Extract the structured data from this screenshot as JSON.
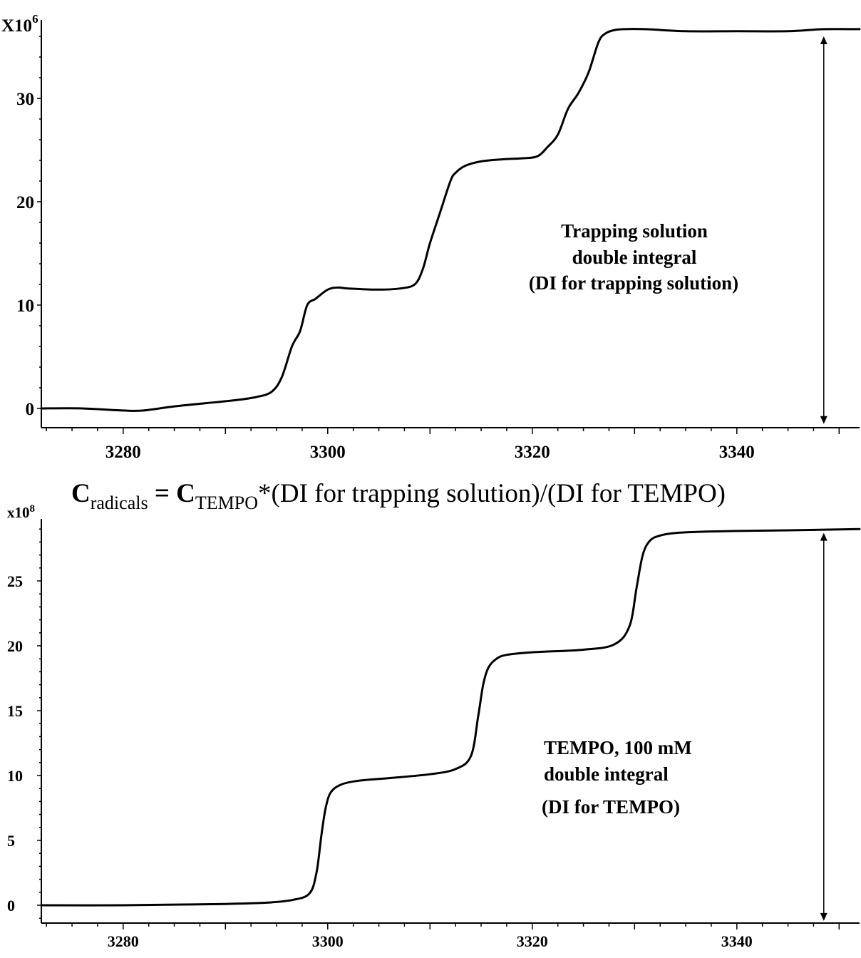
{
  "formula": {
    "c1": "C",
    "sub1": "radicals",
    "eq": " = ",
    "c2": "C",
    "sub2": "TEMPO",
    "rest": "*(DI for trapping solution)/(DI for TEMPO)"
  },
  "chart_data": [
    {
      "type": "line",
      "title": "",
      "xlabel": "",
      "ylabel": "",
      "y_multiplier_label": "X10",
      "y_multiplier_exponent": "6",
      "xlim": [
        3272,
        3352
      ],
      "ylim": [
        -1.8,
        36
      ],
      "x_ticks": [
        3280,
        3300,
        3320,
        3340
      ],
      "x_tick_labels": [
        "3280",
        "3300",
        "3320",
        "3340"
      ],
      "y_ticks": [
        0,
        10,
        20,
        30
      ],
      "y_tick_labels": [
        "0",
        "10",
        "20",
        "30"
      ],
      "annotation": [
        "Trapping solution",
        "double integral",
        "(DI for trapping solution)"
      ],
      "arrow_x": 3348.5,
      "arrow_y": [
        -1.5,
        36
      ],
      "series": [
        {
          "x": [
            3272,
            3276,
            3280,
            3282,
            3285,
            3288,
            3291,
            3293,
            3294.5,
            3295.5,
            3296.5,
            3297.3,
            3298,
            3298.8,
            3300,
            3301,
            3302,
            3305,
            3307,
            3308.5,
            3309.3,
            3310,
            3311,
            3312,
            3312.5,
            3313.5,
            3315,
            3317,
            3319,
            3320.5,
            3321.5,
            3322.5,
            3323.5,
            3324.5,
            3325.5,
            3326.5,
            3327.2,
            3328,
            3329,
            3331,
            3335,
            3340,
            3345,
            3348.5,
            3352
          ],
          "y": [
            0,
            0,
            -0.2,
            -0.2,
            0.2,
            0.5,
            0.8,
            1.1,
            1.6,
            3.0,
            6.0,
            7.5,
            10.0,
            10.6,
            11.5,
            11.7,
            11.6,
            11.5,
            11.6,
            12.0,
            13.5,
            16.0,
            19.0,
            22.0,
            22.8,
            23.5,
            23.9,
            24.1,
            24.2,
            24.4,
            25.3,
            26.5,
            29.0,
            30.5,
            32.5,
            35.5,
            36.3,
            36.6,
            36.7,
            36.7,
            36.5,
            36.5,
            36.5,
            36.7,
            36.7
          ]
        }
      ]
    },
    {
      "type": "line",
      "title": "",
      "xlabel": "",
      "ylabel": "",
      "y_multiplier_label": "x10",
      "y_multiplier_exponent": "8",
      "xlim": [
        3272,
        3352
      ],
      "ylim": [
        -1.4,
        29
      ],
      "x_ticks": [
        3280,
        3300,
        3320,
        3340
      ],
      "x_tick_labels": [
        "3280",
        "3300",
        "3320",
        "3340"
      ],
      "y_ticks": [
        0,
        5,
        10,
        15,
        20,
        25
      ],
      "y_tick_labels": [
        "0",
        "5",
        "10",
        "15",
        "20",
        "25"
      ],
      "annotation": [
        "TEMPO, 100 mM",
        "double integral",
        "(DI for TEMPO)"
      ],
      "arrow_x": 3348.5,
      "arrow_y": [
        -1.2,
        28.7
      ],
      "series": [
        {
          "x": [
            3272,
            3280,
            3285,
            3290,
            3294,
            3296.5,
            3298.2,
            3298.9,
            3299.4,
            3299.8,
            3300.3,
            3301.3,
            3303,
            3306,
            3310,
            3312.5,
            3314,
            3314.7,
            3315.2,
            3315.7,
            3316.5,
            3317.5,
            3320,
            3325,
            3328,
            3329.5,
            3330.2,
            3330.8,
            3331.5,
            3332.5,
            3334,
            3337,
            3340,
            3345,
            3352
          ],
          "y": [
            0,
            0,
            0.05,
            0.1,
            0.2,
            0.4,
            0.9,
            2.5,
            5.5,
            7.5,
            8.7,
            9.3,
            9.6,
            9.8,
            10.1,
            10.5,
            11.5,
            14.5,
            17.0,
            18.3,
            19.0,
            19.3,
            19.5,
            19.7,
            20.1,
            21.5,
            24.5,
            27.0,
            28.1,
            28.5,
            28.7,
            28.8,
            28.85,
            28.9,
            29.0
          ]
        }
      ]
    }
  ]
}
